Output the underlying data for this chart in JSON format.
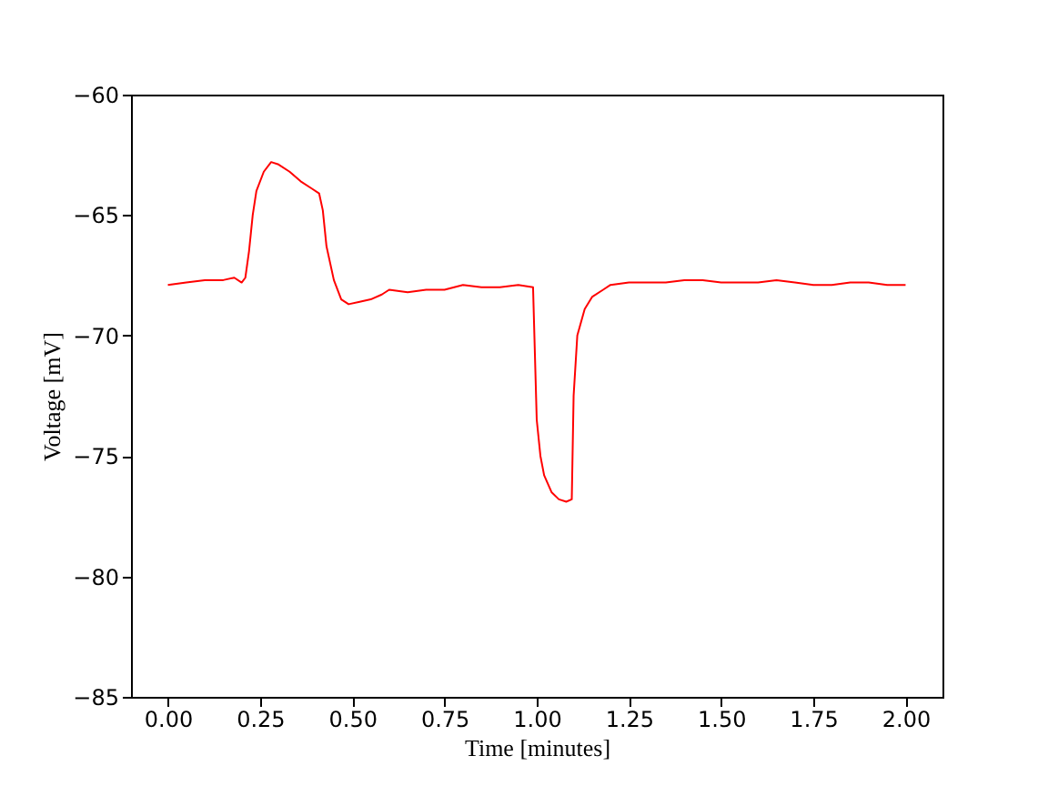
{
  "chart_data": {
    "type": "line",
    "xlabel": "Time [minutes]",
    "ylabel": "Voltage [mV]",
    "xlim": [
      -0.1,
      2.1
    ],
    "ylim": [
      -85,
      -60
    ],
    "xticks": [
      {
        "value": 0,
        "label": "0.00"
      },
      {
        "value": 0.25,
        "label": "0.25"
      },
      {
        "value": 0.5,
        "label": "0.50"
      },
      {
        "value": 0.75,
        "label": "0.75"
      },
      {
        "value": 1,
        "label": "1.00"
      },
      {
        "value": 1.25,
        "label": "1.25"
      },
      {
        "value": 1.5,
        "label": "1.50"
      },
      {
        "value": 1.75,
        "label": "1.75"
      },
      {
        "value": 2,
        "label": "2.00"
      }
    ],
    "yticks": [
      {
        "value": -85,
        "label": "−85"
      },
      {
        "value": -80,
        "label": "−80"
      },
      {
        "value": -75,
        "label": "−75"
      },
      {
        "value": -70,
        "label": "−70"
      },
      {
        "value": -65,
        "label": "−65"
      },
      {
        "value": -60,
        "label": "−60"
      }
    ],
    "grid": false,
    "legend": false,
    "marker": "none",
    "line_style": "solid",
    "series": [
      {
        "color": "#ff0000",
        "x": [
          0.0,
          0.05,
          0.1,
          0.15,
          0.18,
          0.2,
          0.21,
          0.22,
          0.23,
          0.24,
          0.26,
          0.28,
          0.3,
          0.33,
          0.36,
          0.39,
          0.41,
          0.42,
          0.43,
          0.45,
          0.47,
          0.49,
          0.52,
          0.55,
          0.58,
          0.6,
          0.65,
          0.7,
          0.75,
          0.8,
          0.85,
          0.9,
          0.95,
          0.99,
          1.0,
          1.01,
          1.02,
          1.04,
          1.06,
          1.08,
          1.095,
          1.1,
          1.11,
          1.13,
          1.15,
          1.18,
          1.2,
          1.25,
          1.3,
          1.35,
          1.4,
          1.45,
          1.5,
          1.55,
          1.6,
          1.65,
          1.7,
          1.75,
          1.8,
          1.85,
          1.9,
          1.95,
          2.0
        ],
        "values": [
          -67.9,
          -67.8,
          -67.7,
          -67.7,
          -67.6,
          -67.8,
          -67.6,
          -66.5,
          -65.0,
          -64.0,
          -63.2,
          -62.8,
          -62.9,
          -63.2,
          -63.6,
          -63.9,
          -64.1,
          -64.8,
          -66.3,
          -67.7,
          -68.5,
          -68.7,
          -68.6,
          -68.5,
          -68.3,
          -68.1,
          -68.2,
          -68.1,
          -68.1,
          -67.9,
          -68.0,
          -68.0,
          -67.9,
          -68.0,
          -73.5,
          -75.0,
          -75.8,
          -76.5,
          -76.8,
          -76.9,
          -76.8,
          -72.5,
          -70.0,
          -68.9,
          -68.4,
          -68.1,
          -67.9,
          -67.8,
          -67.8,
          -67.8,
          -67.7,
          -67.7,
          -67.8,
          -67.8,
          -67.8,
          -67.7,
          -67.8,
          -67.9,
          -67.9,
          -67.8,
          -67.8,
          -67.9,
          -67.9
        ]
      }
    ]
  }
}
